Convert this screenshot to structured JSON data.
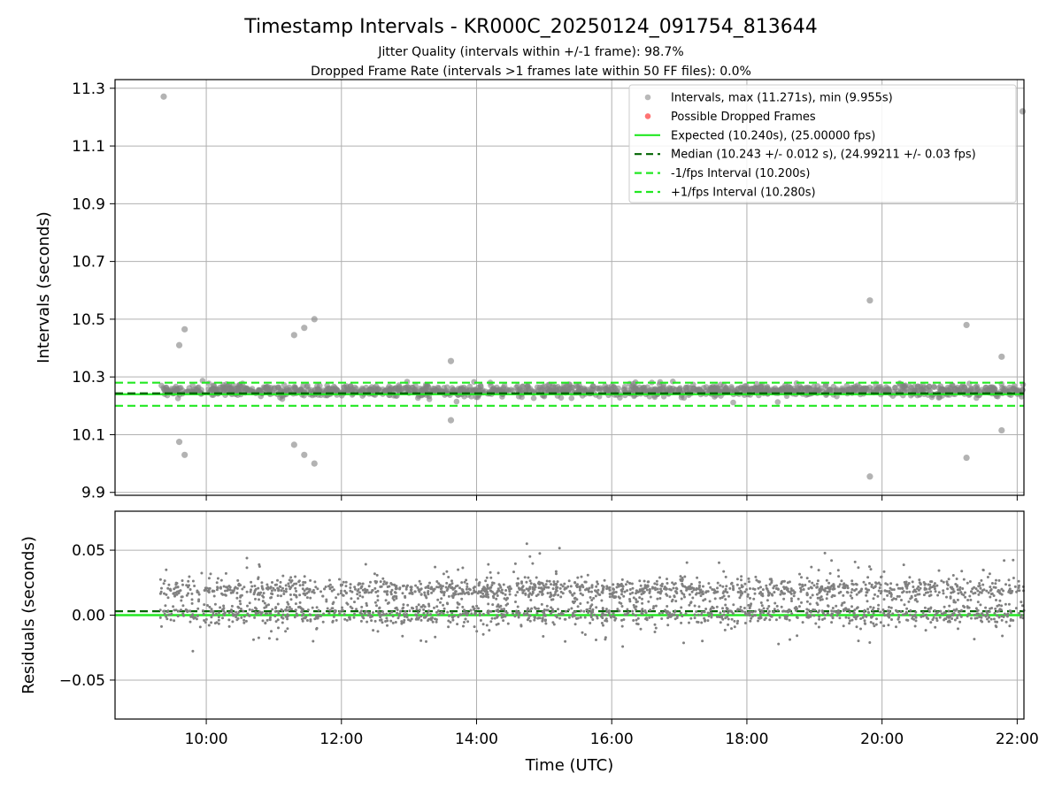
{
  "title": "Timestamp Intervals - KR000C_20250124_091754_813644",
  "subtitle_1": "Jitter Quality (intervals within +/-1 frame): 98.7%",
  "subtitle_2": "Dropped Frame Rate (intervals >1 frames late within 50 FF files): 0.0%",
  "colors": {
    "points": "#808080",
    "dropped": "#ff0000",
    "expected": "#22e822",
    "median": "#006400",
    "bounds": "#22e822",
    "grid": "#b0b0b0"
  },
  "chart_data": [
    {
      "type": "scatter",
      "ylabel": "Intervals (seconds)",
      "xlim": [
        8.65,
        22.1
      ],
      "ylim": [
        9.89,
        11.33
      ],
      "x_ticks": [
        10,
        12,
        14,
        16,
        18,
        20,
        22
      ],
      "x_tick_labels": [
        "10:00",
        "12:00",
        "14:00",
        "16:00",
        "18:00",
        "20:00",
        "22:00"
      ],
      "y_ticks": [
        9.9,
        10.1,
        10.3,
        10.5,
        10.7,
        10.9,
        11.1,
        11.3
      ],
      "y_tick_labels": [
        "9.9",
        "10.1",
        "10.3",
        "10.5",
        "10.7",
        "10.9",
        "11.1",
        "11.3"
      ],
      "grid": true,
      "legend_position": "top-right",
      "legend": [
        "Intervals, max (11.271s), min (9.955s)",
        "Possible Dropped Frames",
        "Expected (10.240s), (25.00000 fps)",
        "Median (10.243 +/- 0.012 s), (24.99211 +/- 0.03 fps)",
        "-1/fps Interval (10.200s)",
        "+1/fps Interval (10.280s)"
      ],
      "x_range_data": [
        9.32,
        22.1
      ],
      "band": {
        "center": 10.253,
        "spread": 0.018,
        "count": 1300
      },
      "expected": 10.24,
      "median": 10.243,
      "lower_bound": 10.2,
      "upper_bound": 10.28,
      "outliers": [
        {
          "x": 9.37,
          "y": 11.271
        },
        {
          "x": 9.6,
          "y": 10.41
        },
        {
          "x": 9.68,
          "y": 10.465
        },
        {
          "x": 9.6,
          "y": 10.075
        },
        {
          "x": 9.68,
          "y": 10.03
        },
        {
          "x": 11.3,
          "y": 10.445
        },
        {
          "x": 11.45,
          "y": 10.47
        },
        {
          "x": 11.6,
          "y": 10.5
        },
        {
          "x": 11.3,
          "y": 10.065
        },
        {
          "x": 11.45,
          "y": 10.03
        },
        {
          "x": 11.6,
          "y": 10.0
        },
        {
          "x": 13.62,
          "y": 10.355
        },
        {
          "x": 13.62,
          "y": 10.15
        },
        {
          "x": 19.82,
          "y": 10.565
        },
        {
          "x": 19.82,
          "y": 9.955
        },
        {
          "x": 21.25,
          "y": 10.48
        },
        {
          "x": 21.25,
          "y": 10.02
        },
        {
          "x": 21.77,
          "y": 10.37
        },
        {
          "x": 21.77,
          "y": 10.115
        },
        {
          "x": 22.08,
          "y": 11.22
        }
      ]
    },
    {
      "type": "scatter",
      "xlabel": "Time (UTC)",
      "ylabel": "Residuals (seconds)",
      "xlim": [
        8.65,
        22.1
      ],
      "ylim": [
        -0.08,
        0.08
      ],
      "x_ticks": [
        10,
        12,
        14,
        16,
        18,
        20,
        22
      ],
      "x_tick_labels": [
        "10:00",
        "12:00",
        "14:00",
        "16:00",
        "18:00",
        "20:00",
        "22:00"
      ],
      "y_ticks": [
        -0.05,
        0.0,
        0.05
      ],
      "y_tick_labels": [
        "−0.05",
        "0.00",
        "0.05"
      ],
      "grid": true,
      "zero_line": 0.0,
      "median_line": 0.003,
      "x_range_data": [
        9.32,
        22.1
      ],
      "clusters": [
        {
          "center": 0.02,
          "spread": 0.004,
          "weight": 0.45
        },
        {
          "center": 0.001,
          "spread": 0.004,
          "weight": 0.35
        },
        {
          "center": 0.01,
          "spread": 0.015,
          "weight": 0.2
        }
      ],
      "count": 2600
    }
  ]
}
